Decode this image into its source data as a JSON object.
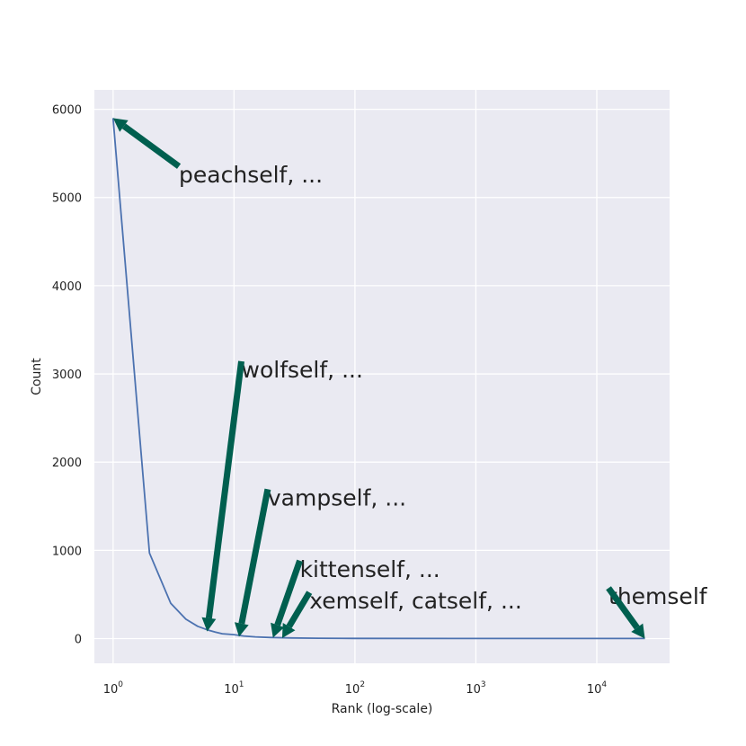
{
  "chart_data": {
    "type": "line",
    "title": "",
    "xlabel": "Rank (log-scale)",
    "ylabel": "Count",
    "x_scale": "log",
    "xlim": [
      0.7,
      40000
    ],
    "ylim": [
      -280,
      6220
    ],
    "grid": true,
    "x_ticks": [
      {
        "value": 1,
        "base": "10",
        "exp": "0"
      },
      {
        "value": 10,
        "base": "10",
        "exp": "1"
      },
      {
        "value": 100,
        "base": "10",
        "exp": "2"
      },
      {
        "value": 1000,
        "base": "10",
        "exp": "3"
      },
      {
        "value": 10000,
        "base": "10",
        "exp": "4"
      }
    ],
    "y_ticks": [
      0,
      1000,
      2000,
      3000,
      4000,
      5000,
      6000
    ],
    "series": [
      {
        "color": "#4c72b0",
        "x": [
          1,
          2,
          3,
          4,
          5,
          6,
          7,
          8,
          9,
          10,
          12,
          15,
          20,
          30,
          50,
          100,
          1000,
          10000,
          25000
        ],
        "y": [
          5900,
          970,
          400,
          220,
          140,
          100,
          75,
          55,
          50,
          45,
          30,
          20,
          12,
          7,
          4,
          2,
          1,
          1,
          1
        ]
      }
    ],
    "annotations": [
      {
        "text": "peachself, ...",
        "point": [
          1,
          5900
        ],
        "text_pos": [
          3.5,
          5170
        ]
      },
      {
        "text": "wolfself, ...",
        "point": [
          6,
          80
        ],
        "text_pos": [
          11.5,
          2960
        ]
      },
      {
        "text": "vampself, ...",
        "point": [
          11,
          20
        ],
        "text_pos": [
          19,
          1510
        ]
      },
      {
        "text": "kittenself, ...",
        "point": [
          21,
          10
        ],
        "text_pos": [
          35,
          700
        ]
      },
      {
        "text": "xemself, catself, ...",
        "point": [
          25,
          5
        ],
        "text_pos": [
          42,
          340
        ]
      },
      {
        "text": "themself",
        "point": [
          25000,
          0
        ],
        "text_pos": [
          12500,
          390
        ]
      }
    ],
    "arrow_color": "#005f4f"
  }
}
